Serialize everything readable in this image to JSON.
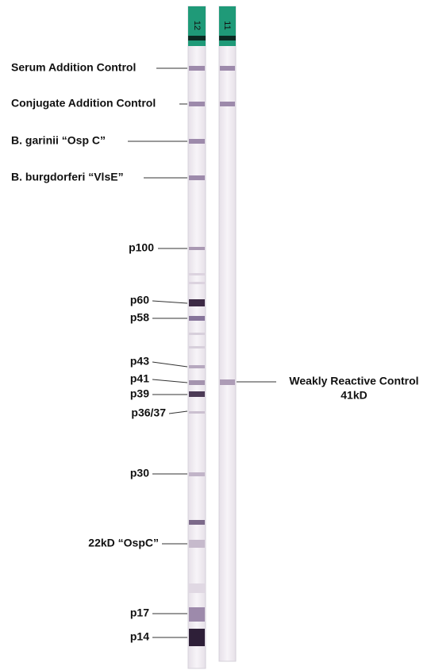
{
  "strips": [
    {
      "label": "12"
    },
    {
      "label": "11"
    }
  ],
  "labels": [
    "Serum Addition Control",
    "Conjugate Addition Control",
    "B. garinii “Osp C”",
    "B. burgdorferi “VlsE”",
    "p100",
    "p60",
    "p58",
    "p43",
    "p41",
    "p39",
    "p36/37",
    "p30",
    "22kD “OspC”",
    "p17",
    "p14"
  ],
  "control_label": {
    "line1": "Weakly Reactive Control",
    "line2": "41kD"
  }
}
